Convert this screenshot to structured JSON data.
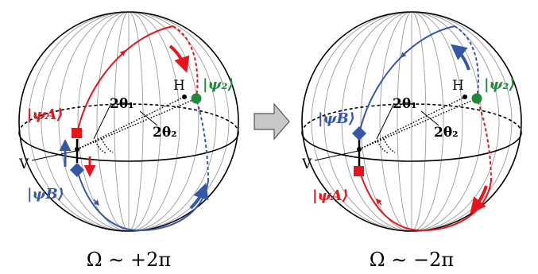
{
  "colors": {
    "red": "#e8141b",
    "blue": "#3656a8",
    "green": "#1f8a3b",
    "black": "#000000",
    "meridian": "#9a9a9a",
    "arrow_fill": "#c8c8c8"
  },
  "left_panel": {
    "caption": "Ω ∼ +2π",
    "label_H": "H",
    "label_V": "V",
    "label_theta1": "2θ₁",
    "label_theta2": "2θ₂",
    "label_psiA": "|ψA⟩",
    "label_psiB": "|ψB⟩",
    "label_psi2": "|ψ₂⟩"
  },
  "right_panel": {
    "caption": "Ω ∼ −2π",
    "label_H": "H",
    "label_V": "V",
    "label_theta1": "2θ₁",
    "label_theta2": "2θ₂",
    "label_psiA": "|ψA⟩",
    "label_psiB": "|ψB⟩",
    "label_psi2": "|ψ₂⟩"
  },
  "transition_icon": "right-arrow-icon"
}
